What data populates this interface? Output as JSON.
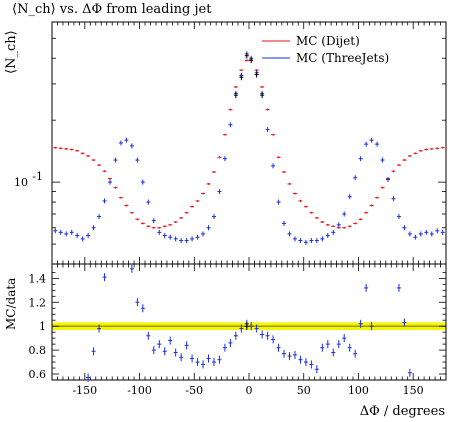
{
  "title": "⟨N_ch⟩ vs. ΔΦ from leading jet",
  "colors": {
    "dijet": "#e3141c",
    "threejets": "#1a2ee6",
    "data": "#000000",
    "band": "#f5f500"
  },
  "chart_data": [
    {
      "type": "scatter",
      "title": "⟨N_ch⟩ vs. ΔΦ from leading jet",
      "ylabel": "⟨N_ch⟩",
      "xlabel": "",
      "xlim": [
        -180,
        180
      ],
      "ylim": [
        0.04,
        0.6
      ],
      "yscale": "log",
      "yticks": [
        {
          "value": 0.1,
          "label": "10^-1"
        }
      ],
      "xticks": [
        -150,
        -100,
        -50,
        0,
        50,
        100,
        150
      ],
      "legend_position": "top-right",
      "series": [
        {
          "name": "MC (Dijet)",
          "x": [
            -177,
            -172,
            -167,
            -162,
            -157,
            -152,
            -147,
            -142,
            -137,
            -132,
            -127,
            -122,
            -117,
            -112,
            -107,
            -102,
            -97,
            -92,
            -87,
            -82,
            -77,
            -72,
            -67,
            -62,
            -57,
            -52,
            -47,
            -42,
            -37,
            -32,
            -27,
            -22,
            -17,
            -12,
            -7,
            -2,
            2,
            7,
            12,
            17,
            22,
            27,
            32,
            37,
            42,
            47,
            52,
            57,
            62,
            67,
            72,
            77,
            82,
            87,
            92,
            97,
            102,
            107,
            112,
            117,
            122,
            127,
            132,
            137,
            142,
            147,
            152,
            157,
            162,
            167,
            172,
            177
          ],
          "values": [
            0.147,
            0.146,
            0.145,
            0.144,
            0.142,
            0.138,
            0.134,
            0.128,
            0.121,
            0.113,
            0.104,
            0.094,
            0.084,
            0.077,
            0.071,
            0.066,
            0.063,
            0.061,
            0.06,
            0.06,
            0.061,
            0.062,
            0.064,
            0.067,
            0.071,
            0.076,
            0.081,
            0.088,
            0.098,
            0.112,
            0.132,
            0.17,
            0.225,
            0.29,
            0.35,
            0.39,
            0.39,
            0.35,
            0.29,
            0.225,
            0.17,
            0.132,
            0.112,
            0.098,
            0.088,
            0.081,
            0.076,
            0.071,
            0.067,
            0.064,
            0.062,
            0.061,
            0.06,
            0.06,
            0.061,
            0.063,
            0.066,
            0.071,
            0.077,
            0.084,
            0.094,
            0.104,
            0.113,
            0.121,
            0.128,
            0.134,
            0.138,
            0.142,
            0.144,
            0.145,
            0.146,
            0.147
          ]
        },
        {
          "name": "MC (ThreeJets)",
          "x": [
            -177,
            -172,
            -167,
            -162,
            -157,
            -152,
            -147,
            -142,
            -137,
            -132,
            -127,
            -122,
            -117,
            -112,
            -107,
            -102,
            -97,
            -92,
            -87,
            -82,
            -77,
            -72,
            -67,
            -62,
            -57,
            -52,
            -47,
            -42,
            -37,
            -32,
            -27,
            -22,
            -17,
            -12,
            -7,
            -2,
            2,
            7,
            12,
            17,
            22,
            27,
            32,
            37,
            42,
            47,
            52,
            57,
            62,
            67,
            72,
            77,
            82,
            87,
            92,
            97,
            102,
            107,
            112,
            117,
            122,
            127,
            132,
            137,
            142,
            147,
            152,
            157,
            162,
            167,
            172,
            177
          ],
          "values": [
            0.058,
            0.057,
            0.056,
            0.057,
            0.055,
            0.053,
            0.055,
            0.06,
            0.068,
            0.081,
            0.1,
            0.128,
            0.155,
            0.16,
            0.15,
            0.128,
            0.1,
            0.08,
            0.065,
            0.057,
            0.055,
            0.054,
            0.053,
            0.052,
            0.052,
            0.053,
            0.054,
            0.056,
            0.06,
            0.068,
            0.09,
            0.13,
            0.19,
            0.27,
            0.33,
            0.42,
            0.4,
            0.34,
            0.27,
            0.18,
            0.12,
            0.08,
            0.063,
            0.056,
            0.053,
            0.052,
            0.051,
            0.052,
            0.052,
            0.053,
            0.055,
            0.057,
            0.062,
            0.07,
            0.085,
            0.105,
            0.13,
            0.153,
            0.16,
            0.153,
            0.128,
            0.103,
            0.083,
            0.068,
            0.06,
            0.056,
            0.054,
            0.056,
            0.057,
            0.056,
            0.058,
            0.057
          ]
        }
      ]
    },
    {
      "type": "scatter",
      "ylabel": "MC/data",
      "xlabel": "ΔΦ / degrees",
      "xlim": [
        -180,
        180
      ],
      "ylim": [
        0.55,
        1.52
      ],
      "yticks": [
        {
          "value": 0.6,
          "label": "0.6"
        },
        {
          "value": 0.8,
          "label": "0.8"
        },
        {
          "value": 1,
          "label": "1"
        },
        {
          "value": 1.2,
          "label": "1.2"
        },
        {
          "value": 1.4,
          "label": "1.4"
        }
      ],
      "xticks": [
        {
          "value": -150,
          "label": "-150"
        },
        {
          "value": -100,
          "label": "-100"
        },
        {
          "value": -50,
          "label": "-50"
        },
        {
          "value": 0,
          "label": "0"
        },
        {
          "value": 50,
          "label": "50"
        },
        {
          "value": 100,
          "label": "100"
        },
        {
          "value": 150,
          "label": "150"
        }
      ],
      "reference_band": [
        0.985,
        1.015
      ],
      "series": [
        {
          "name": "MC (ThreeJets)",
          "x": [
            -147,
            -142,
            -137,
            -132,
            -107,
            -102,
            -97,
            -92,
            -87,
            -82,
            -77,
            -72,
            -67,
            -62,
            -57,
            -52,
            -47,
            -42,
            -37,
            -32,
            -27,
            -22,
            -17,
            -12,
            -7,
            -2,
            2,
            7,
            12,
            17,
            22,
            27,
            32,
            37,
            42,
            47,
            52,
            57,
            62,
            67,
            72,
            77,
            82,
            87,
            92,
            97,
            102,
            107,
            112,
            137,
            142,
            147
          ],
          "values": [
            0.57,
            0.79,
            0.98,
            1.41,
            1.48,
            1.2,
            1.15,
            0.92,
            0.8,
            0.85,
            0.79,
            0.88,
            0.78,
            0.74,
            0.84,
            0.73,
            0.7,
            0.68,
            0.73,
            0.7,
            0.72,
            0.82,
            0.86,
            0.92,
            0.98,
            1.02,
            1.0,
            0.98,
            0.93,
            0.92,
            0.89,
            0.82,
            0.77,
            0.75,
            0.76,
            0.72,
            0.7,
            0.68,
            0.64,
            0.82,
            0.85,
            0.78,
            0.85,
            0.9,
            0.82,
            0.77,
            1.02,
            1.32,
            1.0,
            1.32,
            1.03,
            0.61
          ]
        }
      ]
    }
  ]
}
